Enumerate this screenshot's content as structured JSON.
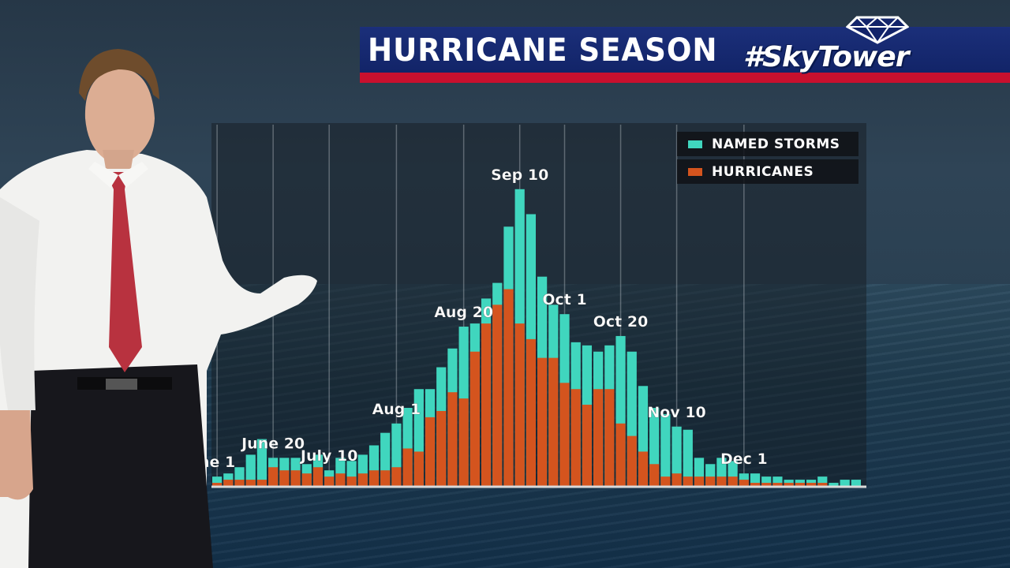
{
  "header": {
    "title": "HURRICANE SEASON",
    "logo_text": "#SkyTower"
  },
  "colors": {
    "named_storms": "#40d6be",
    "hurricanes": "#d4541e",
    "title_bar": "#162a70",
    "title_stripe": "#c8102e"
  },
  "chart_data": {
    "type": "bar",
    "layout": "overlapping",
    "title": "",
    "xlabel": "",
    "ylabel": "",
    "ylim": [
      0,
      100
    ],
    "grid": true,
    "legend_position": "top-right",
    "series": [
      {
        "name": "NAMED STORMS",
        "color": "#40d6be",
        "values": [
          3,
          4,
          6,
          10,
          15,
          9,
          9,
          9,
          7,
          10,
          5,
          9,
          8,
          10,
          13,
          17,
          20,
          25,
          31,
          31,
          38,
          44,
          51,
          52,
          60,
          65,
          83,
          95,
          87,
          67,
          58,
          55,
          46,
          45,
          43,
          45,
          48,
          43,
          32,
          25,
          23,
          19,
          18,
          9,
          7,
          9,
          8,
          4,
          4,
          3,
          3,
          2,
          2,
          2,
          3,
          1,
          2,
          2
        ]
      },
      {
        "name": "HURRICANES",
        "color": "#d4541e",
        "values": [
          1,
          2,
          2,
          2,
          2,
          6,
          5,
          5,
          4,
          6,
          3,
          4,
          3,
          4,
          5,
          5,
          6,
          12,
          11,
          22,
          24,
          30,
          28,
          43,
          52,
          58,
          63,
          52,
          47,
          41,
          41,
          33,
          31,
          26,
          31,
          31,
          20,
          16,
          11,
          7,
          3,
          4,
          3,
          3,
          3,
          3,
          3,
          2,
          1,
          1,
          1,
          1,
          1,
          1,
          1,
          0,
          0,
          0
        ]
      }
    ],
    "annotations": [
      {
        "label": "June 1",
        "bar_index": 0,
        "shown_text": "ne 1"
      },
      {
        "label": "June 20",
        "bar_index": 5
      },
      {
        "label": "July 10",
        "bar_index": 10
      },
      {
        "label": "Aug 1",
        "bar_index": 16
      },
      {
        "label": "Aug 20",
        "bar_index": 22
      },
      {
        "label": "Sep 10",
        "bar_index": 27
      },
      {
        "label": "Oct 1",
        "bar_index": 31
      },
      {
        "label": "Oct 20",
        "bar_index": 36
      },
      {
        "label": "Nov 10",
        "bar_index": 41
      },
      {
        "label": "Dec 1",
        "bar_index": 47
      }
    ]
  }
}
